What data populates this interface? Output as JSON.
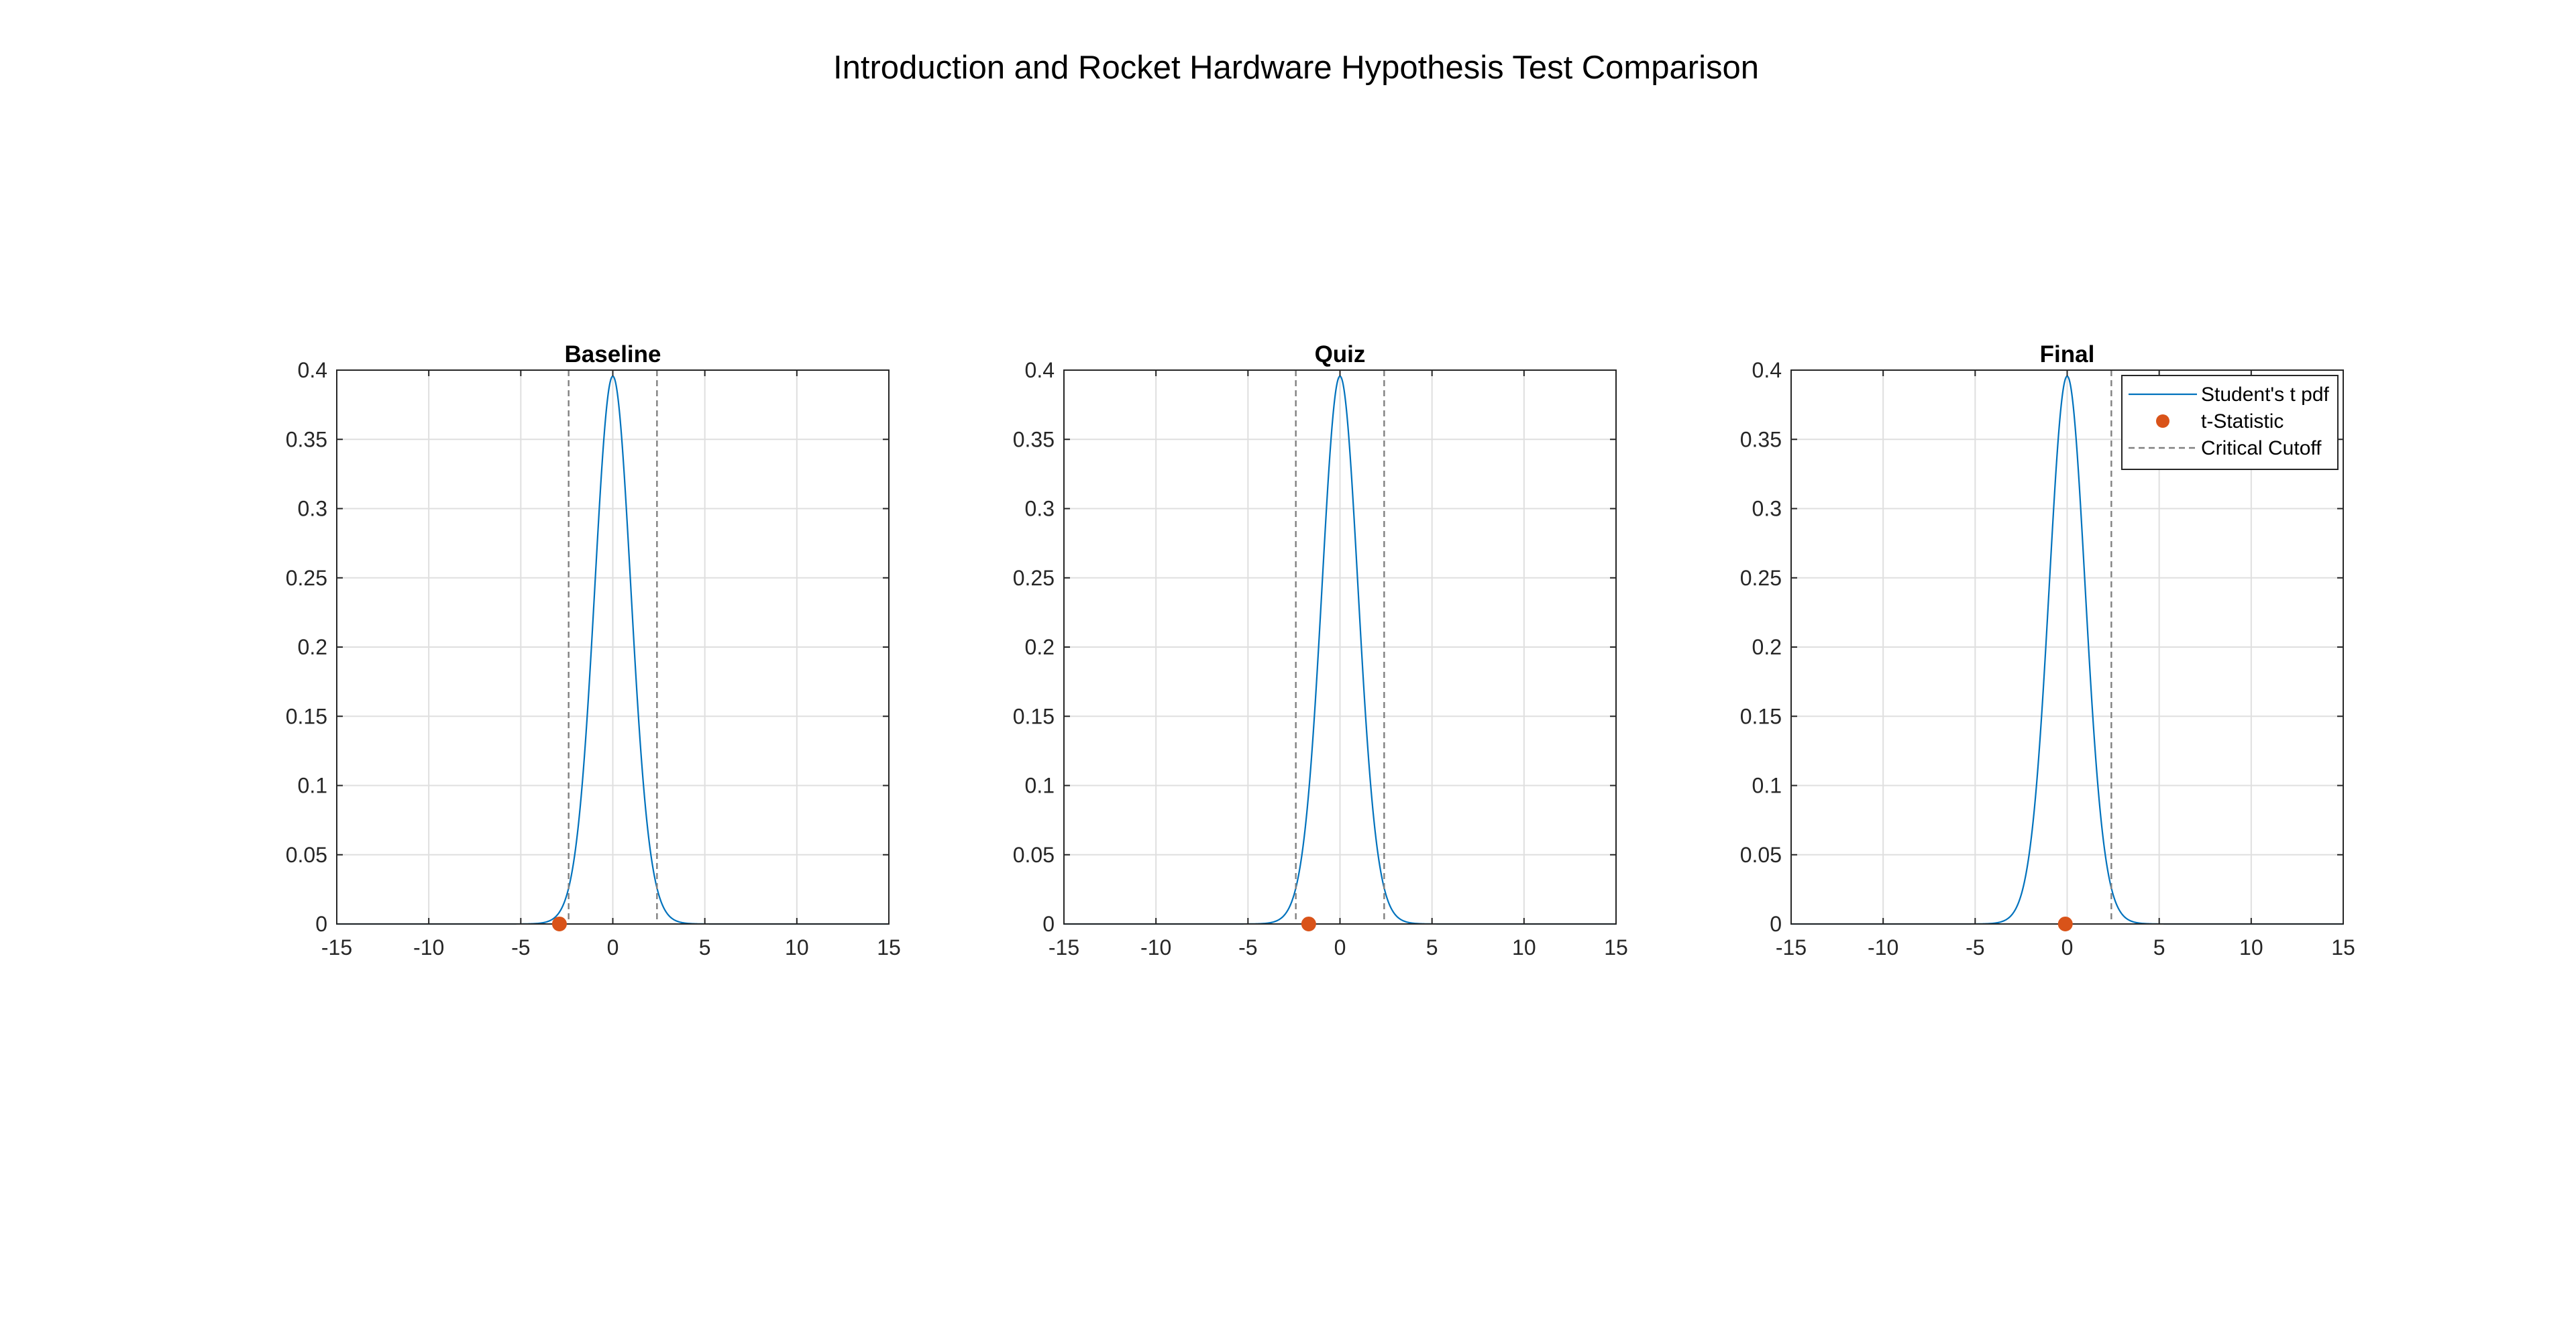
{
  "figure": {
    "title": "Introduction and Rocket Hardware Hypothesis Test Comparison"
  },
  "colors": {
    "pdf_line": "#0072BD",
    "t_statistic": "#D95319",
    "critical_cutoff": "#808080",
    "grid": "#DFDFDF",
    "axes": "#262626"
  },
  "chart_data": [
    {
      "type": "line",
      "title": "Baseline",
      "xlabel": "",
      "ylabel": "",
      "xlim": [
        -15,
        15
      ],
      "ylim": [
        0,
        0.4
      ],
      "xticks": [
        -15,
        -10,
        -5,
        0,
        5,
        10,
        15
      ],
      "yticks": [
        0,
        0.05,
        0.1,
        0.15,
        0.2,
        0.25,
        0.3,
        0.35,
        0.4
      ],
      "grid": true,
      "series": [
        {
          "name": "Student's t pdf",
          "kind": "t-pdf",
          "dof": 30
        },
        {
          "name": "t-Statistic",
          "kind": "point",
          "x": [
            -2.9
          ],
          "y": [
            0
          ]
        },
        {
          "name": "Critical Cutoff",
          "kind": "vline",
          "x": [
            -2.4,
            2.4
          ]
        }
      ]
    },
    {
      "type": "line",
      "title": "Quiz",
      "xlabel": "",
      "ylabel": "",
      "xlim": [
        -15,
        15
      ],
      "ylim": [
        0,
        0.4
      ],
      "xticks": [
        -15,
        -10,
        -5,
        0,
        5,
        10,
        15
      ],
      "yticks": [
        0,
        0.05,
        0.1,
        0.15,
        0.2,
        0.25,
        0.3,
        0.35,
        0.4
      ],
      "grid": true,
      "series": [
        {
          "name": "Student's t pdf",
          "kind": "t-pdf",
          "dof": 30
        },
        {
          "name": "t-Statistic",
          "kind": "point",
          "x": [
            -1.7
          ],
          "y": [
            0
          ]
        },
        {
          "name": "Critical Cutoff",
          "kind": "vline",
          "x": [
            -2.4,
            2.4
          ]
        }
      ]
    },
    {
      "type": "line",
      "title": "Final",
      "xlabel": "",
      "ylabel": "",
      "xlim": [
        -15,
        15
      ],
      "ylim": [
        0,
        0.4
      ],
      "xticks": [
        -15,
        -10,
        -5,
        0,
        5,
        10,
        15
      ],
      "yticks": [
        0,
        0.05,
        0.1,
        0.15,
        0.2,
        0.25,
        0.3,
        0.35,
        0.4
      ],
      "grid": true,
      "legend": "top-right",
      "series": [
        {
          "name": "Student's t pdf",
          "kind": "t-pdf",
          "dof": 30
        },
        {
          "name": "t-Statistic",
          "kind": "point",
          "x": [
            -0.1
          ],
          "y": [
            0
          ]
        },
        {
          "name": "Critical Cutoff",
          "kind": "vline",
          "x": [
            2.4
          ]
        }
      ]
    }
  ]
}
